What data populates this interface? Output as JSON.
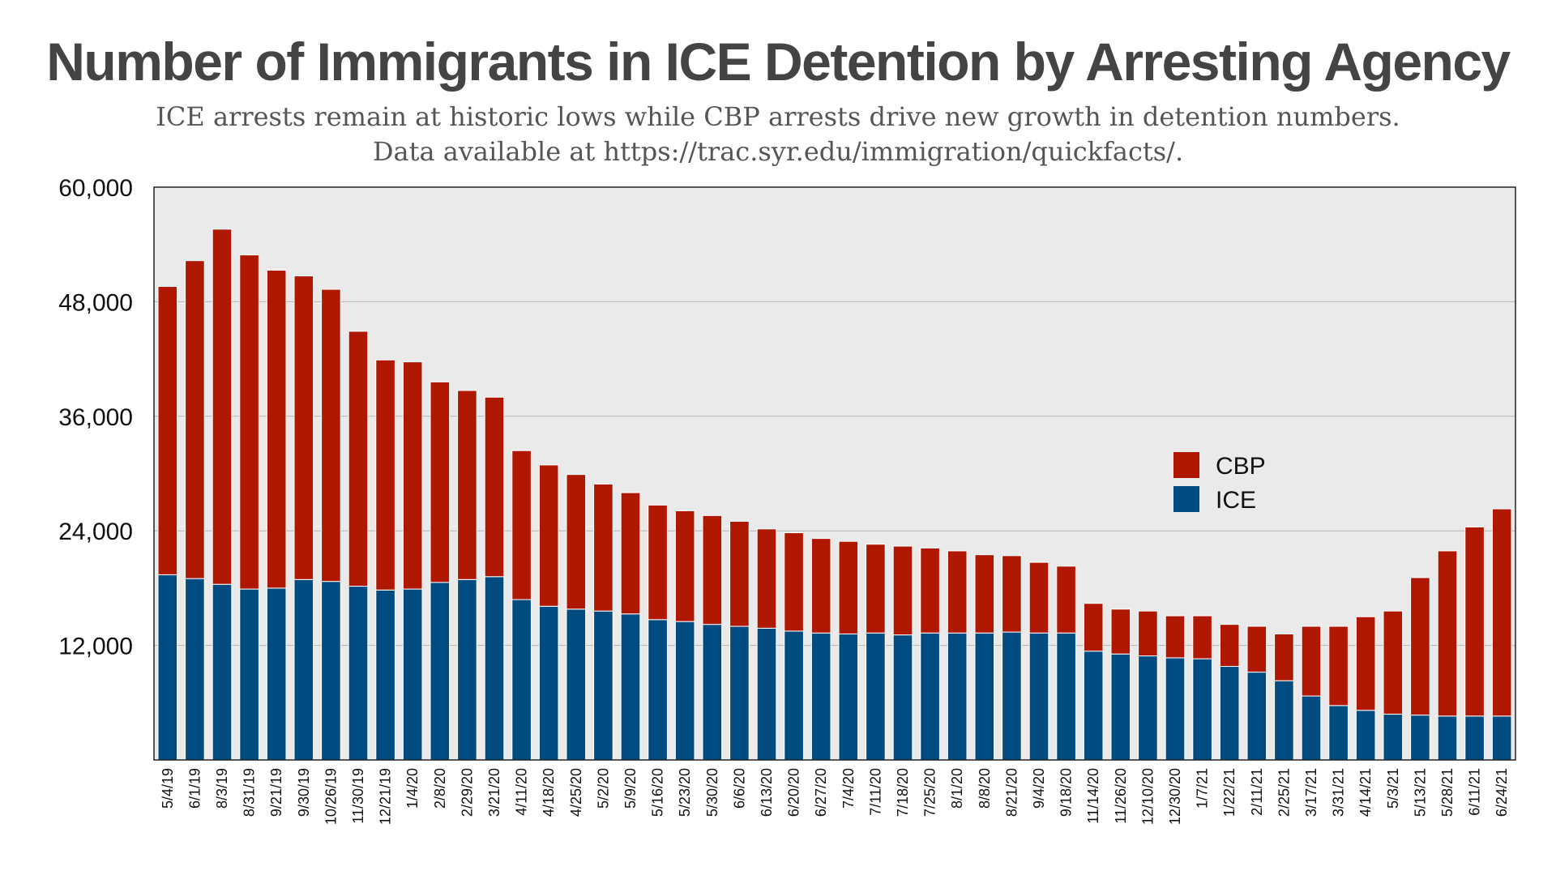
{
  "chart_data": {
    "type": "bar",
    "stacked": true,
    "title": "Number of Immigrants in ICE Detention by Arresting Agency",
    "subtitle_lines": [
      "ICE arrests remain at historic lows while CBP arrests drive new growth in detention numbers.",
      "Data available at https://trac.syr.edu/immigration/quickfacts/."
    ],
    "ylim": [
      0,
      60000
    ],
    "yticks": [
      12000,
      24000,
      36000,
      48000,
      60000
    ],
    "ytick_labels": [
      "12,000",
      "24,000",
      "36,000",
      "48,000",
      "60,000"
    ],
    "grid": true,
    "legend_position": "right",
    "categories": [
      "5/4/19",
      "6/1/19",
      "8/3/19",
      "8/31/19",
      "9/21/19",
      "9/30/19",
      "10/26/19",
      "11/30/19",
      "12/21/19",
      "1/4/20",
      "2/8/20",
      "2/29/20",
      "3/21/20",
      "4/11/20",
      "4/18/20",
      "4/25/20",
      "5/2/20",
      "5/9/20",
      "5/16/20",
      "5/23/20",
      "5/30/20",
      "6/6/20",
      "6/13/20",
      "6/20/20",
      "6/27/20",
      "7/4/20",
      "7/11/20",
      "7/18/20",
      "7/25/20",
      "8/1/20",
      "8/8/20",
      "8/21/20",
      "9/4/20",
      "9/18/20",
      "11/14/20",
      "11/26/20",
      "12/10/20",
      "12/30/20",
      "1/7/21",
      "1/22/21",
      "2/11/21",
      "2/25/21",
      "3/17/21",
      "3/31/21",
      "4/14/21",
      "5/3/21",
      "5/13/21",
      "5/28/21",
      "6/11/21",
      "6/24/21"
    ],
    "series": [
      {
        "name": "ICE",
        "color": "#004b7f",
        "values": [
          19400,
          19000,
          18400,
          17900,
          18000,
          18900,
          18700,
          18200,
          17800,
          17900,
          18600,
          18900,
          19200,
          16800,
          16100,
          15800,
          15600,
          15300,
          14700,
          14500,
          14200,
          14000,
          13800,
          13500,
          13300,
          13200,
          13300,
          13100,
          13300,
          13300,
          13300,
          13400,
          13300,
          13300,
          11400,
          11100,
          10900,
          10700,
          10600,
          9800,
          9200,
          8300,
          6700,
          5700,
          5200,
          4800,
          4700,
          4600,
          4600,
          4600
        ]
      },
      {
        "name": "CBP",
        "color": "#b01700",
        "values": [
          30200,
          33300,
          37200,
          35000,
          33300,
          31800,
          30600,
          26700,
          24100,
          23800,
          21000,
          19800,
          18800,
          15600,
          14800,
          14100,
          13300,
          12700,
          12000,
          11600,
          11400,
          11000,
          10400,
          10300,
          9900,
          9700,
          9300,
          9300,
          8900,
          8600,
          8200,
          8000,
          7400,
          7000,
          5000,
          4700,
          4700,
          4400,
          4500,
          4400,
          4800,
          4900,
          7300,
          8300,
          9800,
          10800,
          14400,
          17300,
          19800,
          21700
        ]
      }
    ]
  }
}
